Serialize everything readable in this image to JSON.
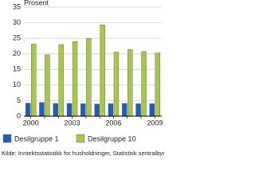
{
  "chart_data": {
    "type": "bar",
    "y_label": "Prosent",
    "categories": [
      "2000",
      null,
      null,
      "2003",
      null,
      null,
      "2006",
      null,
      null,
      "2009"
    ],
    "series": [
      {
        "name": "Desilgruppe 1",
        "color": "#1f5fb4",
        "values": [
          4.2,
          4.4,
          4.1,
          4.1,
          4.0,
          3.9,
          4.0,
          4.1,
          4.0,
          4.0
        ]
      },
      {
        "name": "Desilgruppe 10",
        "color": "#a8c64c",
        "values": [
          23.2,
          19.7,
          23.0,
          24.0,
          25.0,
          29.3,
          20.6,
          21.4,
          20.8,
          20.3
        ]
      }
    ],
    "ylim": [
      0,
      35
    ],
    "yticks": [
      0,
      5,
      10,
      15,
      20,
      25,
      30,
      35
    ],
    "grid": true,
    "source": "Kilde: Inntektsstatistikk for husholdninger, Statistisk sentralbyrå."
  }
}
